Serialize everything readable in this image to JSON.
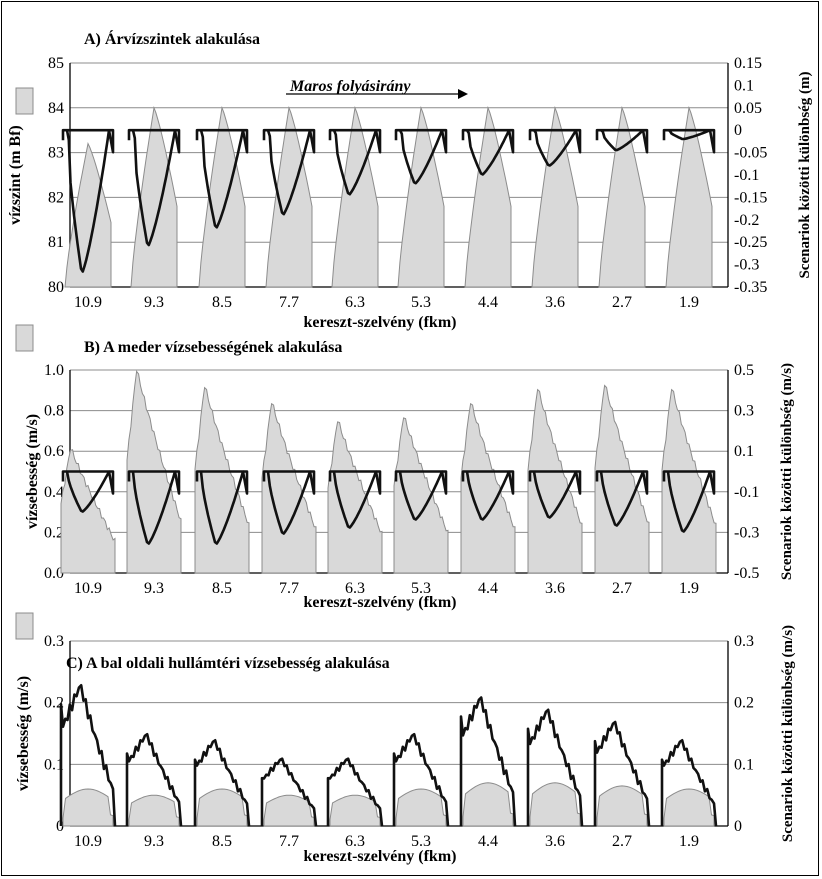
{
  "figure_note": "",
  "colors": {
    "area_fill": "#d9d9d9",
    "area_stroke": "#8c8c8c",
    "line": "#111111",
    "grid": "#8c8c8c"
  },
  "chart_data": [
    {
      "id": "A",
      "type": "area",
      "title": "A) Árvízszintek alakulása",
      "annotation": "Maros folyásirány",
      "xlabel": "kereszt-szelvény (fkm)",
      "ylabel": "vízszint (m Bf)",
      "ylabel_right": "Scenariok közötti különbség (m)",
      "categories": [
        "10.9",
        "9.3",
        "8.5",
        "7.7",
        "6.3",
        "5.3",
        "4.4",
        "3.6",
        "2.7",
        "1.9"
      ],
      "ylim": [
        80,
        85
      ],
      "yticks": [
        "80",
        "81",
        "82",
        "83",
        "84",
        "85"
      ],
      "ylim_right": [
        -0.35,
        0.15
      ],
      "yticks_right": [
        "-0.35",
        "-0.3",
        "-0.25",
        "-0.2",
        "-0.15",
        "-0.1",
        "-0.05",
        "0",
        "0.05",
        "0.1",
        "0.15"
      ],
      "grid": true,
      "series": [
        {
          "axis": "left",
          "style": "area",
          "peaks": [
            83.2,
            84.0,
            84.0,
            84.0,
            84.0,
            84.0,
            84.0,
            84.0,
            84.0,
            84.0
          ]
        },
        {
          "axis": "right",
          "style": "line",
          "min_values": [
            -0.32,
            -0.26,
            -0.22,
            -0.19,
            -0.145,
            -0.12,
            -0.1,
            -0.08,
            -0.045,
            -0.02
          ]
        }
      ]
    },
    {
      "id": "B",
      "type": "area",
      "title": "B) A meder vízsebességének alakulása",
      "xlabel": "kereszt-szelvény (fkm)",
      "ylabel": "vízsebesség  (m/s)",
      "ylabel_right": "Scenariok közötti különbség (m/s)",
      "categories": [
        "10.9",
        "9.3",
        "8.5",
        "7.7",
        "6.3",
        "5.3",
        "4.4",
        "3.6",
        "2.7",
        "1.9"
      ],
      "ylim": [
        0,
        1.0
      ],
      "yticks": [
        "0.0",
        "0.2",
        "0.4",
        "0.6",
        "0.8",
        "1.0"
      ],
      "ylim_right": [
        -0.5,
        0.5
      ],
      "yticks_right": [
        "-0.5",
        "-0.3",
        "-0.1",
        "0.1",
        "0.3",
        "0.5"
      ],
      "grid": true,
      "series": [
        {
          "axis": "left",
          "style": "area",
          "peaks": [
            0.62,
            1.01,
            0.93,
            0.85,
            0.76,
            0.78,
            0.85,
            0.92,
            0.94,
            0.92
          ]
        },
        {
          "axis": "right",
          "style": "line",
          "min_values": [
            -0.2,
            -0.36,
            -0.36,
            -0.31,
            -0.28,
            -0.24,
            -0.24,
            -0.23,
            -0.27,
            -0.3
          ]
        }
      ]
    },
    {
      "id": "C",
      "type": "area",
      "title": "C) A bal oldali hullámtéri vízsebesség alakulása",
      "xlabel": "kereszt-szelvény (fkm)",
      "ylabel": "vízsebesség  (m/s)",
      "ylabel_right": "Scenariok közötti különbség (m/s)",
      "categories": [
        "10.9",
        "9.3",
        "8.5",
        "7.7",
        "6.3",
        "5.3",
        "4.4",
        "3.6",
        "2.7",
        "1.9"
      ],
      "ylim": [
        0,
        0.3
      ],
      "yticks": [
        "0",
        "0.1",
        "0.2",
        "0.3"
      ],
      "ylim_right": [
        0,
        0.3
      ],
      "yticks_right": [
        "0",
        "0.1",
        "0.2",
        "0.3"
      ],
      "grid": true,
      "series": [
        {
          "axis": "left",
          "style": "area",
          "peaks": [
            0.06,
            0.05,
            0.06,
            0.05,
            0.05,
            0.06,
            0.07,
            0.07,
            0.065,
            0.06
          ]
        },
        {
          "axis": "right",
          "style": "line",
          "max_values": [
            0.23,
            0.15,
            0.14,
            0.11,
            0.11,
            0.15,
            0.21,
            0.19,
            0.17,
            0.14
          ]
        }
      ]
    }
  ]
}
